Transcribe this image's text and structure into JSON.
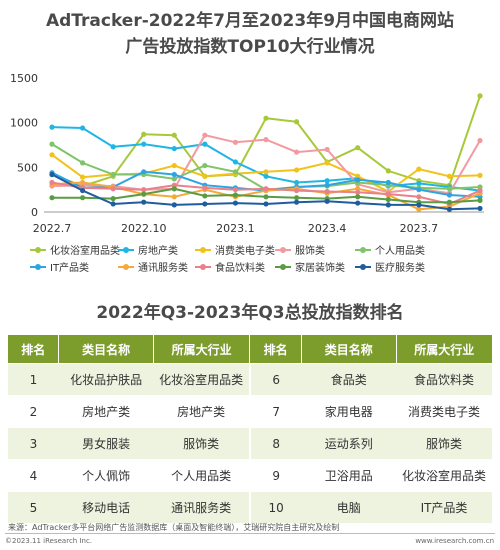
{
  "title_line1": "AdTracker-2022年7月至2023年9月中国电商网站",
  "title_line2": "广告投放指数TOP10大行业情况",
  "section_title": "2022年Q3-2023年Q3总投放指数排名",
  "table": {
    "headers": [
      "排名",
      "类目名称",
      "所属大行业",
      "排名",
      "类目名称",
      "所属大行业"
    ],
    "rows": [
      [
        "1",
        "化妆品护肤品",
        "化妆浴室用品类",
        "6",
        "食品类",
        "食品饮料类"
      ],
      [
        "2",
        "房地产类",
        "房地产类",
        "7",
        "家用电器",
        "消费类电子类"
      ],
      [
        "3",
        "男女服装",
        "服饰类",
        "8",
        "运动系列",
        "服饰类"
      ],
      [
        "4",
        "个人佩饰",
        "个人用品类",
        "9",
        "卫浴用品",
        "化妆浴室用品类"
      ],
      [
        "5",
        "移动电话",
        "通讯服务类",
        "10",
        "电脑",
        "IT产品类"
      ]
    ]
  },
  "source": "来源：AdTracker多平台网络广告监测数据库（桌面及智能终端），艾瑞研究院自主研究及绘制",
  "copyright": "©2023.11 iResearch Inc.",
  "website": "www.iresearch.com.cn",
  "chart_data": {
    "type": "line",
    "x": [
      "2022.7",
      "2022.8",
      "2022.9",
      "2022.10",
      "2022.11",
      "2022.12",
      "2023.1",
      "2023.2",
      "2023.3",
      "2023.4",
      "2023.5",
      "2023.6",
      "2023.7",
      "2023.8",
      "2023.9"
    ],
    "x_tick_labels": [
      "2022.7",
      "2022.10",
      "2023.1",
      "2023.4",
      "2023.7"
    ],
    "ylim": [
      0,
      1500
    ],
    "y_ticks": [
      0,
      500,
      1000,
      1500
    ],
    "grid": false,
    "legend_position": "bottom",
    "series": [
      {
        "name": "化妆浴室用品类",
        "color": "#a6c93a",
        "values": [
          420,
          290,
          400,
          870,
          860,
          400,
          420,
          1050,
          1010,
          560,
          720,
          460,
          350,
          300,
          1300
        ]
      },
      {
        "name": "房地产类",
        "color": "#1fb6e6",
        "values": [
          950,
          940,
          730,
          760,
          710,
          760,
          560,
          400,
          330,
          350,
          380,
          290,
          320,
          280,
          240
        ]
      },
      {
        "name": "消费类电子类",
        "color": "#f2c21c",
        "values": [
          640,
          390,
          420,
          430,
          520,
          400,
          430,
          450,
          470,
          550,
          400,
          230,
          480,
          400,
          410
        ]
      },
      {
        "name": "服饰类",
        "color": "#f29aa0",
        "values": [
          290,
          300,
          290,
          250,
          260,
          860,
          780,
          810,
          670,
          700,
          310,
          220,
          260,
          210,
          800
        ]
      },
      {
        "name": "个人用品类",
        "color": "#7fc36b",
        "values": [
          760,
          550,
          420,
          420,
          370,
          520,
          450,
          250,
          280,
          290,
          330,
          300,
          270,
          260,
          280
        ]
      },
      {
        "name": "IT产品类",
        "color": "#2da5e0",
        "values": [
          440,
          270,
          280,
          450,
          420,
          300,
          270,
          240,
          280,
          300,
          360,
          330,
          250,
          190,
          170
        ]
      },
      {
        "name": "通讯服务类",
        "color": "#f5a93a",
        "values": [
          310,
          330,
          280,
          200,
          170,
          250,
          170,
          240,
          260,
          210,
          260,
          190,
          30,
          60,
          210
        ]
      },
      {
        "name": "食品饮料类",
        "color": "#e8818a",
        "values": [
          330,
          270,
          260,
          250,
          300,
          270,
          250,
          260,
          240,
          230,
          220,
          200,
          170,
          90,
          240
        ]
      },
      {
        "name": "家居装饰类",
        "color": "#5a9c43",
        "values": [
          160,
          160,
          150,
          200,
          260,
          180,
          190,
          170,
          160,
          150,
          170,
          140,
          110,
          110,
          130
        ]
      },
      {
        "name": "医疗服务类",
        "color": "#1f5d9e",
        "values": [
          420,
          240,
          90,
          110,
          80,
          90,
          100,
          90,
          110,
          120,
          100,
          80,
          80,
          30,
          40
        ]
      }
    ]
  }
}
